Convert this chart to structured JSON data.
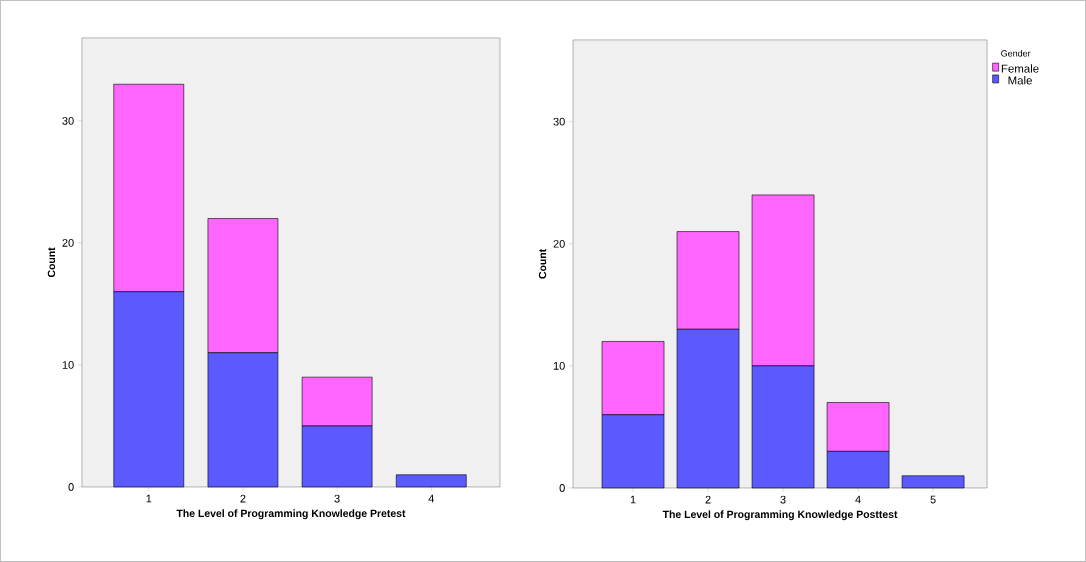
{
  "chart_data": [
    {
      "type": "bar",
      "stacked": true,
      "xlabel": "The Level of Programming Knowledge Pretest",
      "ylabel": "Count",
      "categories": [
        "1",
        "2",
        "3",
        "4"
      ],
      "series": [
        {
          "color": "#5a5aff",
          "values": [
            16,
            11,
            5,
            1
          ]
        },
        {
          "color": "#ff66ff",
          "values": [
            17,
            11,
            4,
            0
          ]
        }
      ],
      "ylim": [
        0,
        36.8
      ],
      "yticks": [
        0,
        10,
        20,
        30
      ],
      "legend": false
    },
    {
      "type": "bar",
      "stacked": true,
      "xlabel": "The Level of Programming Knowledge Posttest",
      "ylabel": "Count",
      "legend_title": "Gender",
      "categories": [
        "1",
        "2",
        "3",
        "4",
        "5"
      ],
      "series": [
        {
          "name": "Male",
          "color": "#5a5aff",
          "values": [
            6,
            13,
            10,
            3,
            1
          ]
        },
        {
          "name": "Female",
          "color": "#ff66ff",
          "values": [
            6,
            8,
            14,
            4,
            0
          ]
        }
      ],
      "ylim": [
        0,
        36.7
      ],
      "yticks": [
        0,
        10,
        20,
        30
      ],
      "legend": "top right"
    }
  ]
}
